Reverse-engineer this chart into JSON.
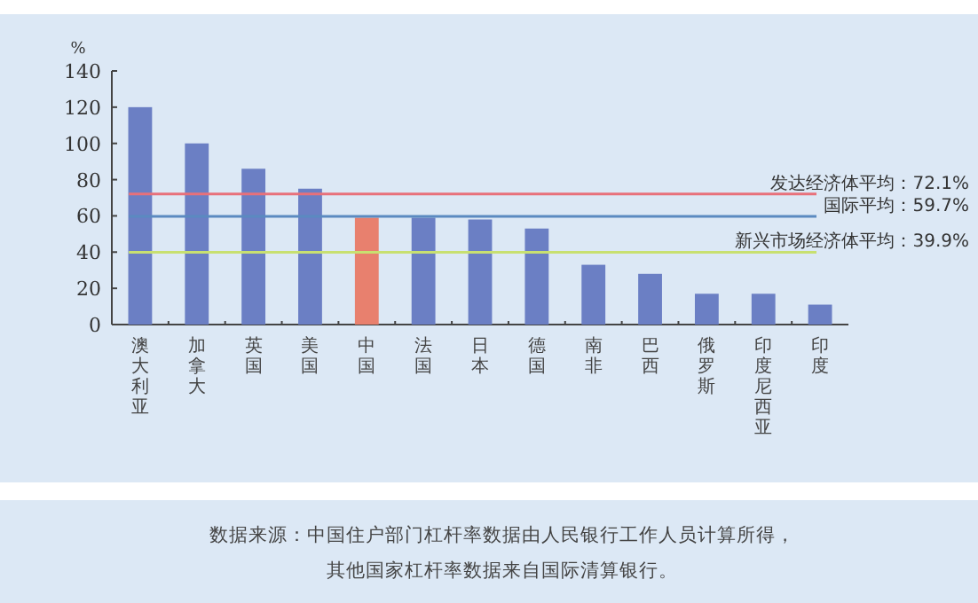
{
  "chart_data": {
    "type": "bar",
    "ylabel": "%",
    "categories": [
      "澳大利亚",
      "加拿大",
      "英国",
      "美国",
      "中国",
      "法国",
      "日本",
      "德国",
      "南非",
      "巴西",
      "俄罗斯",
      "印度尼西亚",
      "印度"
    ],
    "values": [
      120,
      100,
      86,
      75,
      59,
      59,
      58,
      53,
      33,
      28,
      17,
      17,
      11
    ],
    "colors": [
      "#6b7fc4",
      "#6b7fc4",
      "#6b7fc4",
      "#6b7fc4",
      "#e8806e",
      "#6b7fc4",
      "#6b7fc4",
      "#6b7fc4",
      "#6b7fc4",
      "#6b7fc4",
      "#6b7fc4",
      "#6b7fc4",
      "#6b7fc4"
    ],
    "ylim": [
      0,
      140
    ],
    "yticks": [
      0,
      20,
      40,
      60,
      80,
      100,
      120,
      140
    ],
    "grid": false,
    "ref_lines": [
      {
        "axis": "y",
        "value": 72.1,
        "label": "发达经济体平均：72.1%",
        "color": "#e8707a"
      },
      {
        "axis": "y",
        "value": 59.7,
        "label": "国际平均：59.7%",
        "color": "#5b8ac0"
      },
      {
        "axis": "y",
        "value": 39.9,
        "label": "新兴市场经济体平均：39.9%",
        "color": "#c8e070"
      }
    ],
    "annotations": [
      "数据来源：中国住户部门杠杆率数据由人民银行工作人员计算所得，",
      "其他国家杠杆率数据来自国际清算银行。"
    ]
  }
}
